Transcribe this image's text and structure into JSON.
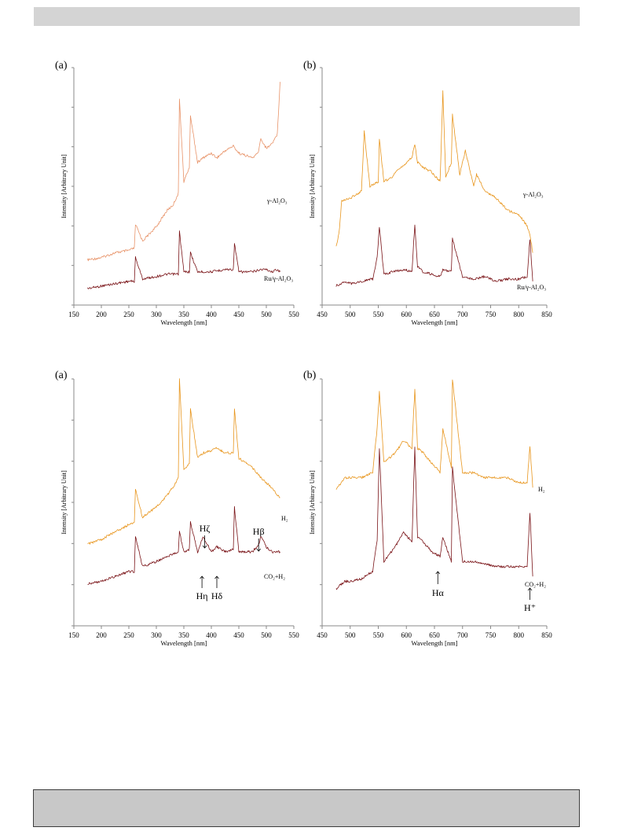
{
  "page": {
    "header_bar": "",
    "footer_box": ""
  },
  "colors": {
    "orange_light": "#e8946a",
    "orange": "#e8961e",
    "dark_red": "#7a1418"
  },
  "chart_data": [
    {
      "id": "fig1a",
      "type": "line",
      "panel_label": "(a)",
      "xlabel": "Wavelength [nm]",
      "ylabel": "Intensity [Arbitrary Unit]",
      "xlim": [
        150,
        550
      ],
      "x_ticks": [
        150,
        200,
        250,
        300,
        350,
        400,
        450,
        500,
        550
      ],
      "ylim": [
        0,
        100
      ],
      "grid": false,
      "series": [
        {
          "name": "γ-Al₂O₃",
          "color": "#e8946a",
          "x": [
            175,
            200,
            225,
            250,
            260,
            262,
            275,
            300,
            320,
            330,
            340,
            342,
            350,
            360,
            362,
            375,
            385,
            400,
            410,
            425,
            440,
            450,
            475,
            485,
            490,
            500,
            510,
            520,
            525
          ],
          "y": [
            19,
            20,
            22,
            23,
            24,
            34,
            27,
            33,
            40,
            42,
            47,
            87,
            52,
            58,
            80,
            60,
            62,
            64,
            62,
            65,
            67,
            64,
            62,
            64,
            70,
            66,
            68,
            72,
            94
          ]
        },
        {
          "name": "Ru/γ-Al₂O₃",
          "color": "#7a1418",
          "x": [
            175,
            200,
            225,
            250,
            260,
            262,
            275,
            300,
            320,
            340,
            342,
            350,
            360,
            362,
            375,
            400,
            425,
            440,
            442,
            450,
            475,
            490,
            500,
            510,
            520,
            525
          ],
          "y": [
            7,
            8,
            9,
            10,
            10,
            20,
            11,
            12,
            13,
            13,
            31,
            14,
            14,
            22,
            14,
            14,
            15,
            15,
            26,
            14,
            14,
            15,
            15,
            14,
            15,
            14
          ]
        }
      ]
    },
    {
      "id": "fig1b",
      "type": "line",
      "panel_label": "(b)",
      "xlabel": "Wavelength [nm]",
      "ylabel": "Intensity [Arbitrary Unit]",
      "xlim": [
        450,
        850
      ],
      "x_ticks": [
        450,
        500,
        550,
        600,
        650,
        700,
        750,
        800,
        850
      ],
      "ylim": [
        0,
        100
      ],
      "grid": false,
      "series": [
        {
          "name": "γ-Al₂O₃",
          "color": "#e8961e",
          "x": [
            475,
            480,
            485,
            500,
            520,
            525,
            535,
            550,
            552,
            560,
            575,
            590,
            600,
            610,
            615,
            620,
            630,
            645,
            660,
            665,
            670,
            680,
            682,
            695,
            705,
            720,
            725,
            740,
            760,
            780,
            800,
            810,
            815,
            820,
            825
          ],
          "y": [
            25,
            30,
            44,
            45,
            48,
            73,
            50,
            52,
            70,
            52,
            54,
            58,
            60,
            62,
            68,
            60,
            58,
            56,
            52,
            90,
            54,
            60,
            80,
            55,
            65,
            50,
            55,
            48,
            45,
            40,
            38,
            35,
            33,
            30,
            22
          ]
        },
        {
          "name": "Ru/γ-Al₂O₃",
          "color": "#7a1418",
          "x": [
            475,
            490,
            500,
            520,
            540,
            548,
            552,
            560,
            575,
            595,
            610,
            615,
            620,
            630,
            645,
            660,
            665,
            680,
            682,
            700,
            720,
            740,
            760,
            780,
            800,
            815,
            820,
            825
          ],
          "y": [
            8,
            10,
            9,
            10,
            11,
            20,
            33,
            13,
            14,
            15,
            14,
            34,
            16,
            14,
            13,
            12,
            15,
            14,
            28,
            12,
            11,
            12,
            10,
            11,
            11,
            12,
            28,
            10
          ]
        }
      ]
    },
    {
      "id": "fig2a",
      "type": "line",
      "panel_label": "(a)",
      "xlabel": "Wavelength [nm]",
      "ylabel": "Intensity [Arbitrary Unit]",
      "xlim": [
        150,
        550
      ],
      "x_ticks": [
        150,
        200,
        250,
        300,
        350,
        400,
        450,
        500,
        550
      ],
      "ylim": [
        0,
        100
      ],
      "grid": false,
      "series": [
        {
          "name": "H₂",
          "color": "#e8961e",
          "x": [
            175,
            200,
            225,
            250,
            260,
            262,
            275,
            300,
            320,
            330,
            340,
            342,
            350,
            360,
            362,
            375,
            385,
            400,
            410,
            425,
            440,
            442,
            450,
            475,
            490,
            500,
            510,
            520,
            525
          ],
          "y": [
            33,
            35,
            38,
            41,
            42,
            55,
            44,
            48,
            53,
            56,
            60,
            100,
            63,
            66,
            88,
            68,
            70,
            71,
            72,
            70,
            70,
            88,
            68,
            64,
            60,
            58,
            56,
            53,
            52
          ]
        },
        {
          "name": "CO₂+H₂",
          "color": "#7a1418",
          "x": [
            175,
            200,
            225,
            250,
            260,
            262,
            275,
            300,
            320,
            340,
            342,
            350,
            360,
            362,
            375,
            385,
            400,
            410,
            425,
            440,
            442,
            450,
            475,
            486,
            490,
            500,
            510,
            520,
            525
          ],
          "y": [
            17,
            18,
            20,
            22,
            22,
            36,
            24,
            26,
            28,
            30,
            38,
            30,
            31,
            42,
            30,
            36,
            30,
            32,
            30,
            31,
            48,
            30,
            30,
            33,
            36,
            32,
            30,
            30,
            30
          ]
        }
      ],
      "annotations": [
        {
          "text": "Hζ",
          "x": 388,
          "direction": "down"
        },
        {
          "text": "Hβ",
          "x": 486,
          "direction": "down"
        },
        {
          "text": "Hη",
          "x": 383,
          "direction": "up"
        },
        {
          "text": "Hδ",
          "x": 410,
          "direction": "up"
        }
      ]
    },
    {
      "id": "fig2b",
      "type": "line",
      "panel_label": "(b)",
      "xlabel": "Wavelength [nm]",
      "ylabel": "Intensity [Arbitrary Unit]",
      "xlim": [
        450,
        850
      ],
      "x_ticks": [
        450,
        500,
        550,
        600,
        650,
        700,
        750,
        800,
        850
      ],
      "ylim": [
        0,
        100
      ],
      "grid": false,
      "series": [
        {
          "name": "H₂",
          "color": "#e8961e",
          "x": [
            475,
            490,
            500,
            520,
            540,
            548,
            552,
            560,
            580,
            595,
            610,
            615,
            620,
            630,
            645,
            660,
            665,
            680,
            682,
            700,
            720,
            740,
            760,
            780,
            800,
            815,
            820,
            825
          ],
          "y": [
            55,
            60,
            60,
            60,
            62,
            80,
            95,
            66,
            70,
            75,
            72,
            96,
            72,
            70,
            66,
            62,
            80,
            64,
            100,
            62,
            62,
            60,
            60,
            60,
            58,
            58,
            73,
            56
          ]
        },
        {
          "name": "CO₂+H₂",
          "color": "#7a1418",
          "x": [
            475,
            490,
            500,
            520,
            540,
            548,
            552,
            560,
            580,
            595,
            610,
            615,
            620,
            630,
            645,
            660,
            665,
            680,
            682,
            700,
            720,
            740,
            760,
            780,
            800,
            815,
            820,
            825
          ],
          "y": [
            15,
            18,
            18,
            19,
            22,
            35,
            72,
            26,
            32,
            38,
            34,
            72,
            36,
            34,
            30,
            28,
            36,
            26,
            64,
            26,
            26,
            25,
            24,
            24,
            24,
            24,
            46,
            20
          ]
        }
      ],
      "annotations": [
        {
          "text": "Hα",
          "x": 656,
          "direction": "up"
        },
        {
          "text": "H⁺",
          "x": 820,
          "direction": "up"
        }
      ]
    }
  ]
}
